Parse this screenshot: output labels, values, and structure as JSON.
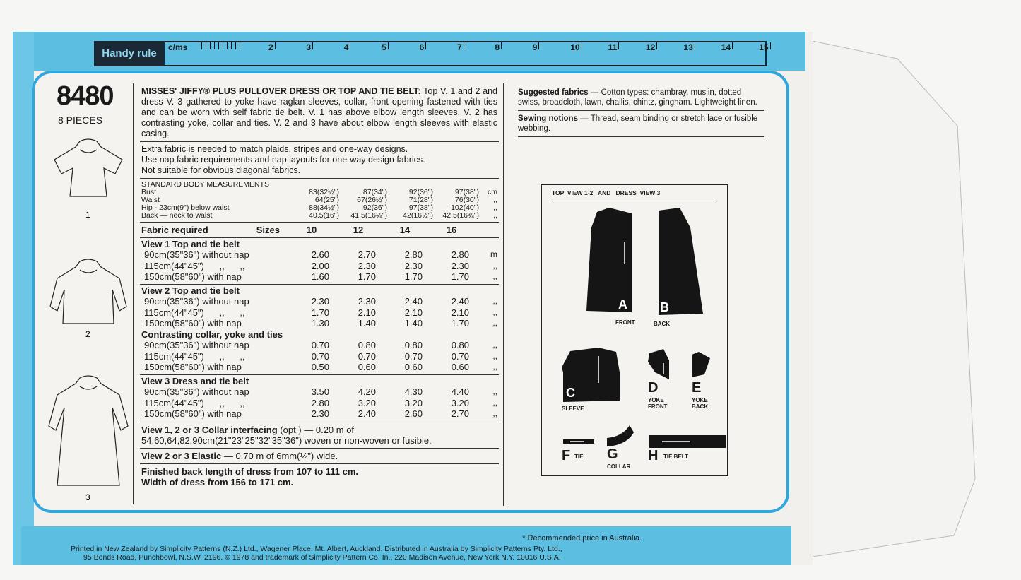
{
  "ruler": {
    "label": "Handy rule",
    "unit": "c/ms",
    "ticks": [
      "2",
      "3",
      "4",
      "5",
      "6",
      "7",
      "8",
      "9",
      "10",
      "11",
      "12",
      "13",
      "14",
      "15"
    ]
  },
  "pattern": {
    "number": "8480",
    "pieces": "8 PIECES",
    "views": [
      "1",
      "2",
      "3"
    ]
  },
  "description": {
    "title": "MISSES' JIFFY® PLUS PULLOVER DRESS OR TOP AND TIE BELT:",
    "text": "Top V. 1 and 2 and dress V. 3 gathered to yoke have raglan sleeves, collar, front opening fastened with ties and can be worn with self fabric tie belt. V. 1 has above elbow length sleeves. V. 2 has contrasting yoke, collar and ties. V. 2 and 3 have about elbow length sleeves with elastic casing.",
    "notes": [
      "Extra fabric is needed to match plaids, stripes and one-way designs.",
      "Use nap fabric requirements and nap layouts for one-way design fabrics.",
      "Not suitable for obvious diagonal fabrics."
    ]
  },
  "measurements": {
    "heading": "STANDARD BODY MEASUREMENTS",
    "rows": [
      {
        "label": "Bust",
        "values": [
          "83(32½\")",
          "87(34\")",
          "92(36\")",
          "97(38\")"
        ],
        "unit": "cm"
      },
      {
        "label": "Waist",
        "values": [
          "64(25\")",
          "67(26½\")",
          "71(28\")",
          "76(30\")"
        ],
        "unit": ",,"
      },
      {
        "label": "Hip - 23cm(9\") below waist",
        "values": [
          "88(34½\")",
          "92(36\")",
          "97(38\")",
          "102(40\")"
        ],
        "unit": ",,"
      },
      {
        "label": "Back — neck to waist",
        "values": [
          "40.5(16\")",
          "41.5(16¼\")",
          "42(16½\")",
          "42.5(16¾\")"
        ],
        "unit": ",,"
      }
    ]
  },
  "fabric": {
    "heading": "Fabric required",
    "sizes_label": "Sizes",
    "sizes": [
      "10",
      "12",
      "14",
      "16"
    ],
    "sections": [
      {
        "title": "View 1  Top and tie belt",
        "rows": [
          {
            "label": "90cm(35\"36\") without nap",
            "values": [
              "2.60",
              "2.70",
              "2.80",
              "2.80"
            ],
            "unit": "m"
          },
          {
            "label": "115cm(44\"45\")      ,,      ,,",
            "values": [
              "2.00",
              "2.30",
              "2.30",
              "2.30"
            ],
            "unit": ",,"
          },
          {
            "label": "150cm(58\"60\") with nap",
            "values": [
              "1.60",
              "1.70",
              "1.70",
              "1.70"
            ],
            "unit": ",,"
          }
        ]
      },
      {
        "title": "View 2  Top and tie belt",
        "rows": [
          {
            "label": "90cm(35\"36\") without nap",
            "values": [
              "2.30",
              "2.30",
              "2.40",
              "2.40"
            ],
            "unit": ",,"
          },
          {
            "label": "115cm(44\"45\")      ,,      ,,",
            "values": [
              "1.70",
              "2.10",
              "2.10",
              "2.10"
            ],
            "unit": ",,"
          },
          {
            "label": "150cm(58\"60\") with nap",
            "values": [
              "1.30",
              "1.40",
              "1.40",
              "1.70"
            ],
            "unit": ",,"
          }
        ]
      },
      {
        "title": "Contrasting collar, yoke and ties",
        "rows": [
          {
            "label": "90cm(35\"36\") without nap",
            "values": [
              "0.70",
              "0.80",
              "0.80",
              "0.80"
            ],
            "unit": ",,"
          },
          {
            "label": "115cm(44\"45\")      ,,      ,,",
            "values": [
              "0.70",
              "0.70",
              "0.70",
              "0.70"
            ],
            "unit": ",,"
          },
          {
            "label": "150cm(58\"60\") with nap",
            "values": [
              "0.50",
              "0.60",
              "0.60",
              "0.60"
            ],
            "unit": ",,"
          }
        ]
      },
      {
        "title": "View 3  Dress and tie belt",
        "rows": [
          {
            "label": "90cm(35\"36\") without nap",
            "values": [
              "3.50",
              "4.20",
              "4.30",
              "4.40"
            ],
            "unit": ",,"
          },
          {
            "label": "115cm(44\"45\")      ,,      ,,",
            "values": [
              "2.80",
              "3.20",
              "3.20",
              "3.20"
            ],
            "unit": ",,"
          },
          {
            "label": "150cm(58\"60\") with nap",
            "values": [
              "2.30",
              "2.40",
              "2.60",
              "2.70"
            ],
            "unit": ",,"
          }
        ]
      }
    ]
  },
  "interfacing": {
    "title": "View 1, 2 or 3  Collar interfacing",
    "text": " (opt.) — 0.20 m of",
    "line2": "54,60,64,82,90cm(21\"23\"25\"32\"35\"36\") woven or non-woven or fusible."
  },
  "elastic": {
    "title": "View 2 or 3  Elastic",
    "text": " — 0.70 m of 6mm(¼\") wide."
  },
  "finished": [
    "Finished back length of dress from 107 to 111 cm.",
    "Width of dress from 156 to 171 cm."
  ],
  "suggested": {
    "title": "Suggested fabrics",
    "text": " — Cotton types: chambray, muslin, dotted swiss, broadcloth, lawn, challis, chintz, gingham. Lightweight linen."
  },
  "notions": {
    "title": "Sewing notions",
    "text": " — Thread, seam binding or stretch lace or fusible webbing."
  },
  "pieces_diagram": {
    "heading": "TOP  VIEW 1-2   AND   DRESS  VIEW 3",
    "pieces": [
      {
        "letter": "A",
        "name": "FRONT"
      },
      {
        "letter": "B",
        "name": "BACK"
      },
      {
        "letter": "C",
        "name": "SLEEVE"
      },
      {
        "letter": "D",
        "name": "YOKE FRONT"
      },
      {
        "letter": "E",
        "name": "YOKE BACK"
      },
      {
        "letter": "F",
        "name": "TIE"
      },
      {
        "letter": "G",
        "name": "COLLAR"
      },
      {
        "letter": "H",
        "name": "TIE BELT"
      }
    ]
  },
  "footer": {
    "price_note": "* Recommended price in Australia.",
    "line1": "Printed in New Zealand by Simplicity Patterns (N.Z.) Ltd., Wagener Place, Mt. Albert, Auckland. Distributed in Australia by Simplicity Patterns Pty. Ltd.,",
    "line2": "95 Bonds Road, Punchbowl, N.S.W. 2196.   © 1978 and trademark of Simplicity Pattern Co. In., 220 Madison Avenue, New York N.Y. 10016  U.S.A."
  },
  "colors": {
    "band": "#5cbfe2",
    "border": "#2fa6dc",
    "ink": "#1a1a1a"
  }
}
